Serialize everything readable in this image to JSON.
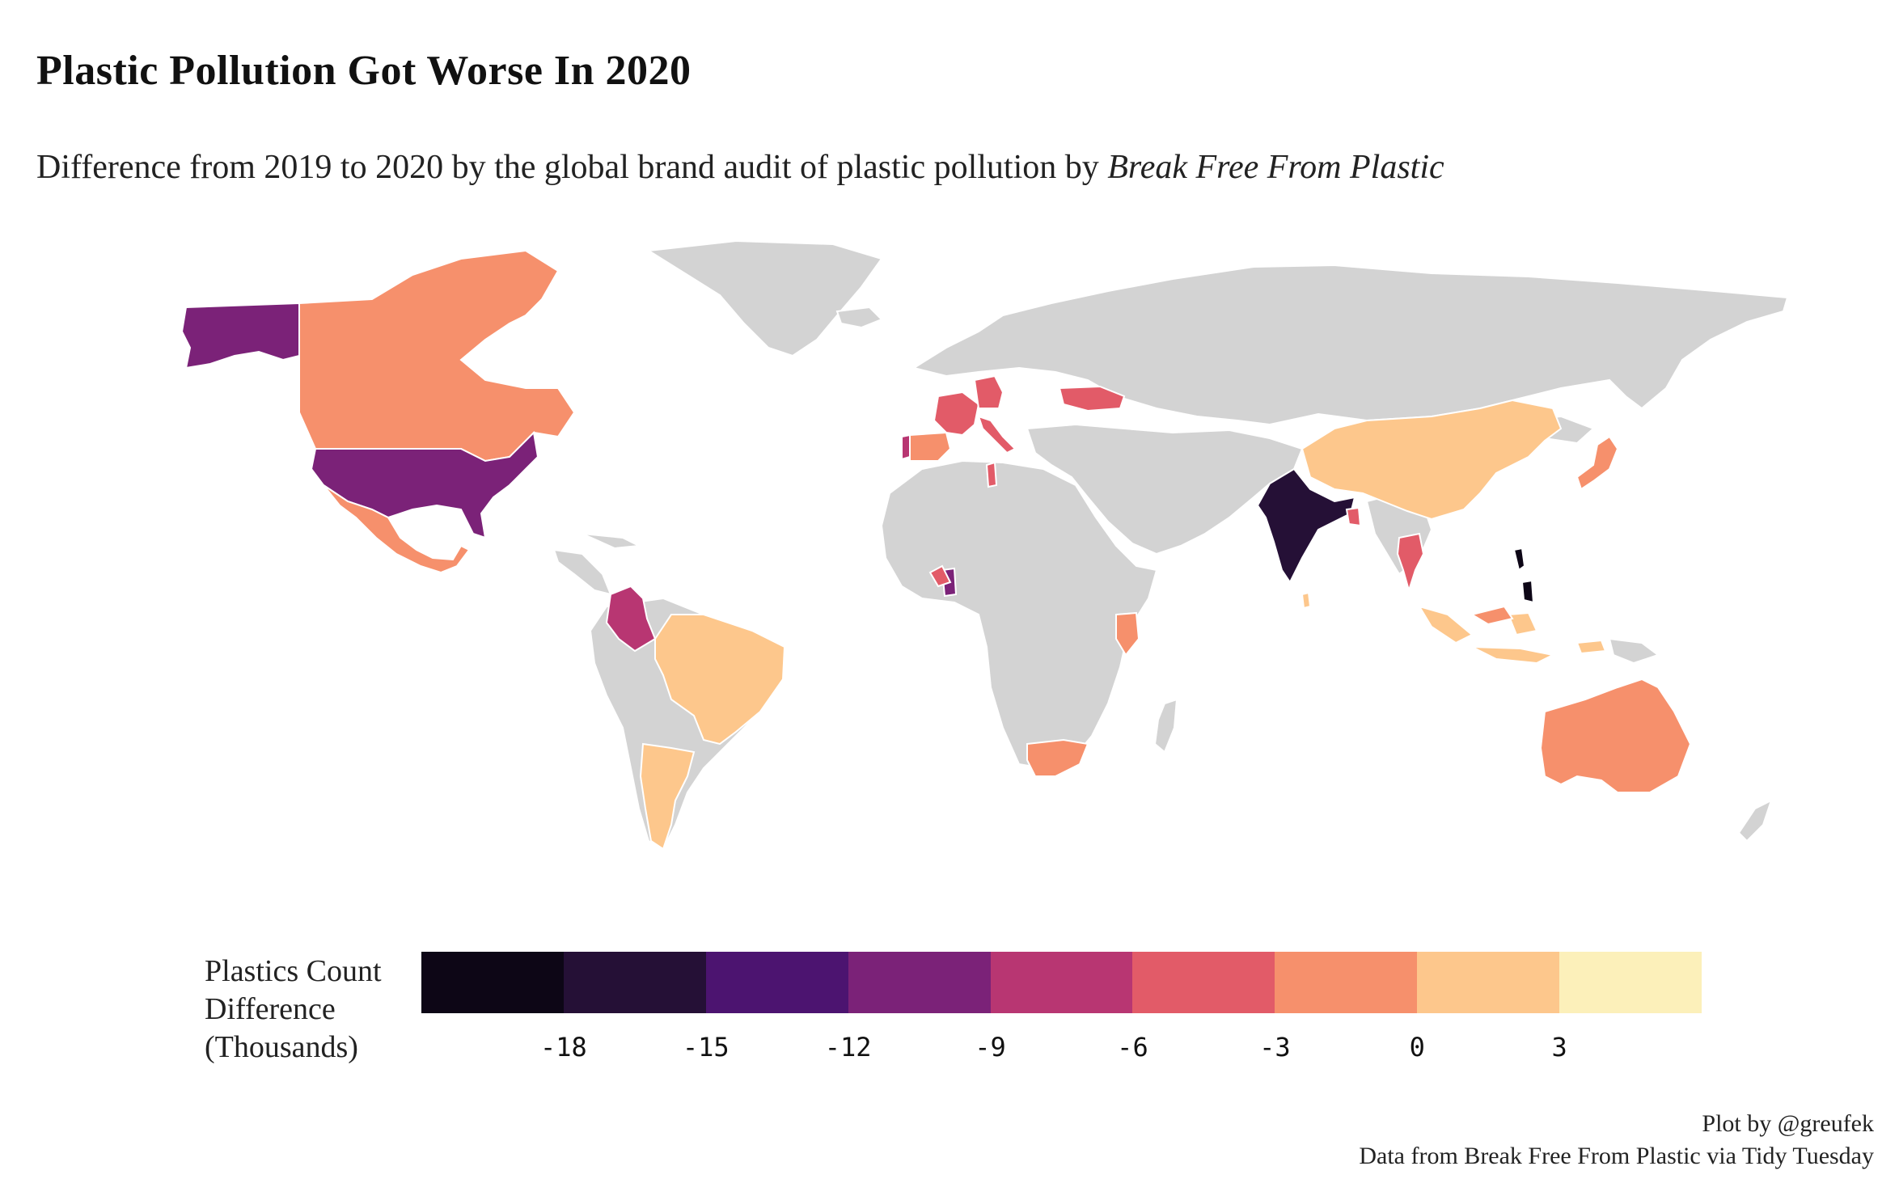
{
  "title": "Plastic Pollution Got Worse In 2020",
  "subtitle": {
    "text": "Difference from 2019 to 2020 by the global brand audit of plastic pollution by ",
    "source_italic": "Break Free From Plastic"
  },
  "map": {
    "type": "choropleth",
    "projection": "world",
    "no_data_color": "#d3d3d3",
    "border_color": "#ffffff",
    "palette": [
      "#0d0616",
      "#251036",
      "#4c1470",
      "#7b2278",
      "#b83672",
      "#e25b68",
      "#f6906c",
      "#fdc78c",
      "#fcf0ba"
    ],
    "regions": [
      {
        "name": "Alaska",
        "color": "#7b2278"
      },
      {
        "name": "Canada",
        "color": "#f6906c"
      },
      {
        "name": "United States",
        "color": "#7b2278"
      },
      {
        "name": "Mexico",
        "color": "#f6906c"
      },
      {
        "name": "Colombia",
        "color": "#b83672"
      },
      {
        "name": "Brazil",
        "color": "#fdc78c"
      },
      {
        "name": "Argentina",
        "color": "#fdc78c"
      },
      {
        "name": "Portugal",
        "color": "#b83672"
      },
      {
        "name": "Spain",
        "color": "#f6906c"
      },
      {
        "name": "France",
        "color": "#e25b68"
      },
      {
        "name": "Germany",
        "color": "#e25b68"
      },
      {
        "name": "Italy",
        "color": "#e25b68"
      },
      {
        "name": "Ukraine",
        "color": "#e25b68"
      },
      {
        "name": "Tunisia",
        "color": "#e25b68"
      },
      {
        "name": "Ghana",
        "color": "#7b2278"
      },
      {
        "name": "Nigeria",
        "color": "#e25b68"
      },
      {
        "name": "Kenya",
        "color": "#f6906c"
      },
      {
        "name": "South Africa",
        "color": "#f6906c"
      },
      {
        "name": "India",
        "color": "#251036"
      },
      {
        "name": "Bangladesh",
        "color": "#e25b68"
      },
      {
        "name": "China",
        "color": "#fdc78c"
      },
      {
        "name": "Thailand",
        "color": "#e25b68"
      },
      {
        "name": "Philippines",
        "color": "#0d0616"
      },
      {
        "name": "Indonesia",
        "color": "#fdc78c"
      },
      {
        "name": "Malaysia",
        "color": "#f6906c"
      },
      {
        "name": "Japan",
        "color": "#f6906c"
      },
      {
        "name": "Australia",
        "color": "#f6906c"
      },
      {
        "name": "Sri Lanka",
        "color": "#fdc78c"
      }
    ]
  },
  "legend": {
    "title_lines": [
      "Plastics Count",
      "Difference",
      "(Thousands)"
    ],
    "colors": [
      "#0d0616",
      "#251036",
      "#4c1470",
      "#7b2278",
      "#b83672",
      "#e25b68",
      "#f6906c",
      "#fdc78c",
      "#fcf0ba"
    ],
    "ticks": [
      "-18",
      "-15",
      "-12",
      "-9",
      "-6",
      "-3",
      "0",
      "3"
    ]
  },
  "caption": {
    "line1": "Plot by @greufek",
    "line2": "Data from Break Free From Plastic via Tidy Tuesday"
  }
}
